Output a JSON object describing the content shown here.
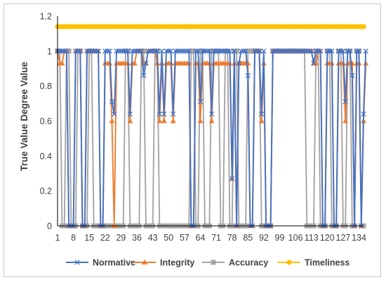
{
  "chart_data": {
    "type": "line",
    "title": "",
    "xlabel": "",
    "ylabel": "True Value Degree Value",
    "ylim": [
      0,
      1.2
    ],
    "yticks": [
      "0",
      "0.2",
      "0.4",
      "0.6",
      "0.8",
      "1",
      "1.2"
    ],
    "xticks": [
      "1",
      "8",
      "15",
      "22",
      "29",
      "36",
      "43",
      "50",
      "57",
      "64",
      "71",
      "78",
      "85",
      "92",
      "99",
      "106",
      "113",
      "120",
      "127",
      "134"
    ],
    "xrange": [
      1,
      136
    ],
    "grid": false,
    "legend_position": "bottom",
    "series": [
      {
        "name": "Normative",
        "color": "#4472c4",
        "marker": "x",
        "values": [
          1,
          1,
          1,
          1,
          1,
          0,
          0,
          0,
          1,
          1,
          1,
          0,
          0,
          1,
          1,
          1,
          1,
          1,
          1,
          0,
          0,
          1,
          1,
          1,
          0.71,
          0.64,
          1,
          1,
          1,
          1,
          1,
          1,
          0.64,
          1,
          1,
          1,
          1,
          1,
          0.86,
          0.93,
          1,
          1,
          1,
          1,
          1,
          0.64,
          1,
          0.64,
          1,
          1,
          1,
          0.64,
          1,
          1,
          1,
          1,
          1,
          1,
          1,
          0,
          0,
          1,
          1,
          0.71,
          1,
          1,
          1,
          1,
          0.64,
          1,
          1,
          1,
          1,
          1,
          1,
          1,
          1,
          0.27,
          1,
          0,
          0.93,
          1,
          1,
          1,
          0.86,
          0,
          0,
          1,
          1,
          1,
          0.64,
          1,
          0,
          0,
          0,
          1,
          1,
          1,
          1,
          1,
          1,
          1,
          1,
          1,
          1,
          1,
          1,
          1,
          1,
          1,
          1,
          1,
          1,
          0.93,
          1,
          1,
          1,
          0,
          0,
          1,
          1,
          1,
          0,
          0,
          1,
          1,
          1,
          0.71,
          1,
          1,
          0.86,
          0,
          1,
          1,
          0,
          0.64,
          1
        ]
      },
      {
        "name": "Integrity",
        "color": "#ed7d31",
        "marker": "triangle",
        "values": [
          1,
          0.93,
          0.93,
          1,
          1,
          0,
          0,
          0,
          1,
          1,
          1,
          0,
          0,
          1,
          1,
          1,
          1,
          1,
          1,
          0,
          0,
          0.93,
          0.93,
          0.93,
          0.6,
          0,
          0.93,
          0.93,
          0.93,
          0.93,
          0.93,
          0.93,
          0.6,
          0.93,
          0.93,
          1,
          1,
          1,
          0.93,
          0.93,
          1,
          1,
          1,
          1,
          0.93,
          0.6,
          0.93,
          0.6,
          0.93,
          0.93,
          0.93,
          0.6,
          0.93,
          0.93,
          0.93,
          0.93,
          0.93,
          0.93,
          0.93,
          0,
          0,
          0.93,
          0.93,
          0.6,
          0.93,
          0.93,
          0.93,
          0.93,
          0.6,
          0.93,
          0.93,
          0.93,
          0.93,
          0.93,
          0.93,
          0.93,
          0.93,
          0.27,
          0.93,
          0,
          0.93,
          0.93,
          0.93,
          0.93,
          0.93,
          0,
          0,
          1,
          1,
          1,
          0.6,
          0.93,
          0,
          0,
          0,
          1,
          1,
          1,
          1,
          1,
          1,
          1,
          1,
          1,
          1,
          1,
          1,
          1,
          1,
          1,
          1,
          1,
          1,
          0.93,
          0.93,
          1,
          1,
          0,
          0,
          0.93,
          0.93,
          0.93,
          0,
          0,
          0.93,
          0.93,
          0.93,
          0.6,
          0.93,
          0.93,
          0.93,
          0,
          0.93,
          0.93,
          0,
          0.6,
          0.93
        ]
      },
      {
        "name": "Accuracy",
        "color": "#a5a5a5",
        "marker": "square",
        "values": [
          1,
          1,
          0,
          0,
          1,
          1,
          0,
          0,
          0,
          1,
          1,
          0,
          0,
          0,
          1,
          1,
          0,
          0,
          0,
          0,
          0,
          0,
          0,
          0,
          0,
          0,
          0,
          0,
          0,
          0,
          1,
          1,
          0,
          0,
          0,
          0,
          0,
          1,
          1,
          0,
          0,
          0,
          0,
          1,
          1,
          0,
          0,
          0,
          0,
          0,
          0,
          0,
          0,
          0,
          0,
          0,
          0,
          0,
          0,
          1,
          1,
          0,
          0,
          1,
          1,
          0,
          0,
          0,
          1,
          1,
          1,
          1,
          0,
          0,
          1,
          1,
          0,
          0,
          1,
          1,
          0,
          0,
          0,
          0,
          1,
          1,
          1,
          1,
          1,
          1,
          0,
          0,
          0,
          0,
          0,
          1,
          1,
          1,
          1,
          1,
          1,
          1,
          1,
          1,
          1,
          1,
          1,
          1,
          1,
          1,
          0,
          0,
          0,
          0,
          1,
          1,
          0,
          0,
          0,
          1,
          1,
          0,
          0,
          0,
          1,
          1,
          0,
          0,
          1,
          1,
          0,
          0,
          1,
          1,
          0,
          0
        ]
      },
      {
        "name": "Timeliness",
        "color": "#ffc000",
        "marker": "circle",
        "constant": 1.14
      }
    ]
  }
}
